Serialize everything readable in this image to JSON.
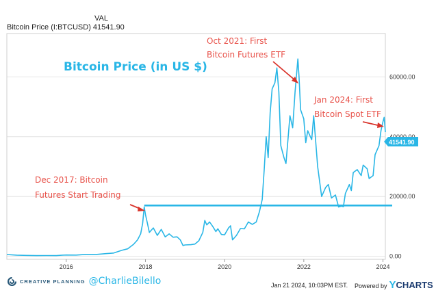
{
  "header": {
    "val_label": "VAL",
    "series_label": "Bitcoin Price (I:BTCUSD)",
    "series_value": "41541.90"
  },
  "annotations": {
    "title": "Bitcoin Price (in US $)",
    "oct2021_line1": "Oct 2021: First",
    "oct2021_line2": "Bitcoin Futures ETF",
    "jan2024_line1": "Jan 2024: First",
    "jan2024_line2": "Bitcoin Spot ETF",
    "dec2017_line1": "Dec 2017: Bitcoin",
    "dec2017_line2": "Futures Start Trading"
  },
  "footer": {
    "brand": "CREATIVE PLANNING",
    "handle": "@CharlieBilello",
    "timestamp": "Jan 21 2024, 10:03PM EST.",
    "powered_by": "Powered by",
    "ycharts_y": "Y",
    "ycharts_rest": "CHARTS"
  },
  "colors": {
    "line": "#29b6e6",
    "annotation_text": "#e8524a",
    "arrow": "#d9342b",
    "title_text": "#29b6e6",
    "hline": "#29b6e6"
  },
  "chart_data": {
    "type": "line",
    "title": "Bitcoin Price (in US $)",
    "xlabel": "",
    "ylabel": "",
    "x_ticks": [
      "2016",
      "2018",
      "2020",
      "2022",
      "2024"
    ],
    "y_ticks": [
      "0.00",
      "20000.00",
      "40000.00",
      "60000.00"
    ],
    "xlim": [
      2014.5,
      2024.06
    ],
    "ylim": [
      -1000,
      74500
    ],
    "grid": true,
    "last_value_label": "41541.90",
    "horizontal_line": {
      "value": 17000
    },
    "series": [
      {
        "name": "Bitcoin Price (I:BTCUSD)",
        "points": [
          [
            2014.5,
            600
          ],
          [
            2014.75,
            400
          ],
          [
            2015.0,
            300
          ],
          [
            2015.25,
            240
          ],
          [
            2015.5,
            260
          ],
          [
            2015.75,
            240
          ],
          [
            2015.9,
            400
          ],
          [
            2016.0,
            430
          ],
          [
            2016.25,
            420
          ],
          [
            2016.5,
            650
          ],
          [
            2016.75,
            620
          ],
          [
            2017.0,
            900
          ],
          [
            2017.2,
            1100
          ],
          [
            2017.4,
            2000
          ],
          [
            2017.55,
            2500
          ],
          [
            2017.7,
            4000
          ],
          [
            2017.8,
            5500
          ],
          [
            2017.88,
            7500
          ],
          [
            2017.93,
            11000
          ],
          [
            2017.97,
            16500
          ],
          [
            2018.0,
            14000
          ],
          [
            2018.05,
            11000
          ],
          [
            2018.1,
            8000
          ],
          [
            2018.2,
            9500
          ],
          [
            2018.3,
            7000
          ],
          [
            2018.4,
            9000
          ],
          [
            2018.5,
            6500
          ],
          [
            2018.6,
            7500
          ],
          [
            2018.7,
            6400
          ],
          [
            2018.8,
            6500
          ],
          [
            2018.88,
            5500
          ],
          [
            2018.95,
            3600
          ],
          [
            2019.0,
            3800
          ],
          [
            2019.15,
            3900
          ],
          [
            2019.25,
            4100
          ],
          [
            2019.35,
            5200
          ],
          [
            2019.45,
            8000
          ],
          [
            2019.5,
            12000
          ],
          [
            2019.55,
            10500
          ],
          [
            2019.62,
            11500
          ],
          [
            2019.7,
            10000
          ],
          [
            2019.78,
            8300
          ],
          [
            2019.83,
            9200
          ],
          [
            2019.92,
            7300
          ],
          [
            2020.0,
            7200
          ],
          [
            2020.1,
            9500
          ],
          [
            2020.15,
            10200
          ],
          [
            2020.2,
            5500
          ],
          [
            2020.3,
            7000
          ],
          [
            2020.4,
            9300
          ],
          [
            2020.5,
            9200
          ],
          [
            2020.6,
            11500
          ],
          [
            2020.7,
            10700
          ],
          [
            2020.8,
            11500
          ],
          [
            2020.88,
            15000
          ],
          [
            2020.95,
            19000
          ],
          [
            2021.0,
            29000
          ],
          [
            2021.05,
            40000
          ],
          [
            2021.1,
            33000
          ],
          [
            2021.15,
            48000
          ],
          [
            2021.2,
            56000
          ],
          [
            2021.27,
            58000
          ],
          [
            2021.32,
            63000
          ],
          [
            2021.37,
            55000
          ],
          [
            2021.42,
            37000
          ],
          [
            2021.5,
            33000
          ],
          [
            2021.55,
            31000
          ],
          [
            2021.6,
            39000
          ],
          [
            2021.65,
            47000
          ],
          [
            2021.72,
            43000
          ],
          [
            2021.78,
            55000
          ],
          [
            2021.85,
            66000
          ],
          [
            2021.88,
            60000
          ],
          [
            2021.92,
            49000
          ],
          [
            2022.0,
            46000
          ],
          [
            2022.05,
            38000
          ],
          [
            2022.1,
            42000
          ],
          [
            2022.2,
            39000
          ],
          [
            2022.25,
            47000
          ],
          [
            2022.35,
            30000
          ],
          [
            2022.45,
            20000
          ],
          [
            2022.55,
            23000
          ],
          [
            2022.62,
            24000
          ],
          [
            2022.7,
            19500
          ],
          [
            2022.8,
            20500
          ],
          [
            2022.88,
            16500
          ],
          [
            2022.95,
            16800
          ],
          [
            2023.0,
            16600
          ],
          [
            2023.05,
            21000
          ],
          [
            2023.15,
            24000
          ],
          [
            2023.2,
            22000
          ],
          [
            2023.25,
            28000
          ],
          [
            2023.35,
            29000
          ],
          [
            2023.45,
            27000
          ],
          [
            2023.5,
            30500
          ],
          [
            2023.6,
            29300
          ],
          [
            2023.65,
            26000
          ],
          [
            2023.75,
            27000
          ],
          [
            2023.8,
            34000
          ],
          [
            2023.9,
            37000
          ],
          [
            2023.95,
            42000
          ],
          [
            2024.0,
            45000
          ],
          [
            2024.03,
            46500
          ],
          [
            2024.06,
            41542
          ]
        ]
      }
    ]
  }
}
